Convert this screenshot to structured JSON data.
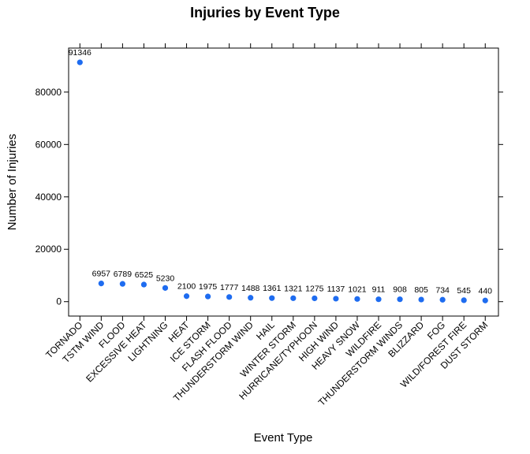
{
  "chart_data": {
    "type": "scatter",
    "title": "Injuries by Event Type",
    "xlabel": "Event Type",
    "ylabel": "Number of Injuries",
    "categories": [
      "TORNADO",
      "TSTM WIND",
      "FLOOD",
      "EXCESSIVE HEAT",
      "LIGHTNING",
      "HEAT",
      "ICE STORM",
      "FLASH FLOOD",
      "THUNDERSTORM WIND",
      "HAIL",
      "WINTER STORM",
      "HURRICANE/TYPHOON",
      "HIGH WIND",
      "HEAVY SNOW",
      "WILDFIRE",
      "THUNDERSTORM WINDS",
      "BLIZZARD",
      "FOG",
      "WILD/FOREST FIRE",
      "DUST STORM"
    ],
    "values": [
      91346,
      6957,
      6789,
      6525,
      5230,
      2100,
      1975,
      1777,
      1488,
      1361,
      1321,
      1275,
      1137,
      1021,
      911,
      908,
      805,
      734,
      545,
      440
    ],
    "data_labels": [
      "91346",
      "6957",
      "6789",
      "6525",
      "5230",
      "2100",
      "1975",
      "1777",
      "1488",
      "1361",
      "1321",
      "1275",
      "1137",
      "1021",
      "911",
      "908",
      "805",
      "734",
      "545",
      "440"
    ],
    "y_ticks": [
      0,
      20000,
      40000,
      60000,
      80000
    ],
    "y_tick_labels": [
      "0",
      "20000",
      "40000",
      "60000",
      "80000"
    ],
    "ylim": [
      -5500,
      96800
    ],
    "grid": false,
    "point_color": "#1e6cf0"
  }
}
